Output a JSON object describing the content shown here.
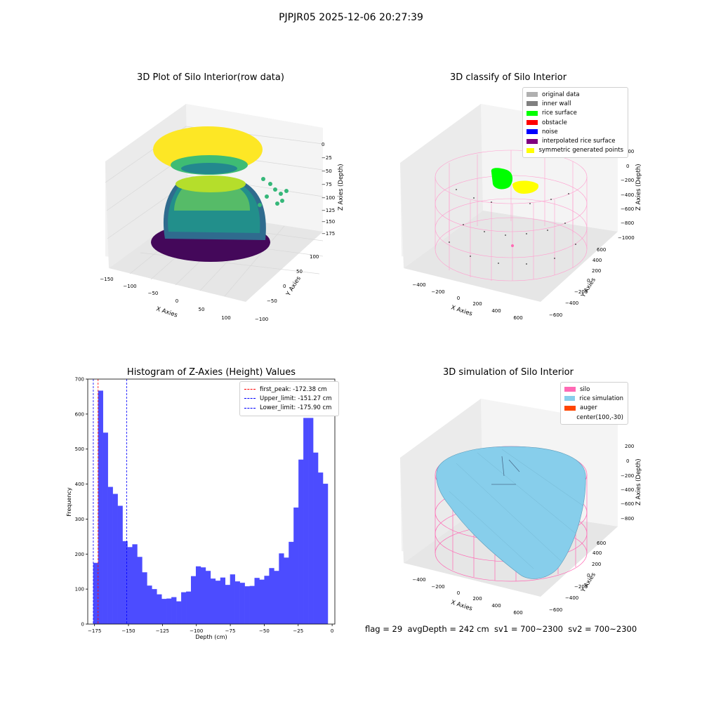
{
  "suptitle": "PJPJR05 2025-12-06 20:27:39",
  "colors": {
    "histogram_bar": "#4c4cff",
    "silo_pink": "#ff69b4",
    "rice_blue": "#87ceeb",
    "viridis_yellow": "#fde725"
  },
  "plot_raw": {
    "title": "3D Plot of Silo Interior(row data)",
    "xlabel": "X Axies",
    "ylabel": "Y Axies",
    "zlabel": "Z Axies (Depth)",
    "xticks": [
      "−150",
      "−100",
      "−50",
      "0",
      "50",
      "100"
    ],
    "yticks": [
      "−100",
      "−50",
      "0",
      "50",
      "100"
    ],
    "zticks": [
      "0",
      "−25",
      "−50",
      "−75",
      "−100",
      "−125",
      "−150",
      "−175"
    ]
  },
  "plot_classify": {
    "title": "3D classify of Silo Interior",
    "xlabel": "X Axies",
    "ylabel": "Y Axies",
    "zlabel": "Z Axies (Depth)",
    "xticks": [
      "−400",
      "−200",
      "0",
      "200",
      "400",
      "600"
    ],
    "yticks": [
      "−600",
      "−400",
      "−200",
      "0",
      "200",
      "400",
      "600"
    ],
    "zticks": [
      "200",
      "0",
      "−200",
      "−400",
      "−600",
      "−800",
      "−1000"
    ],
    "legend": [
      {
        "label": "original data",
        "color": "#b0b0b0"
      },
      {
        "label": "inner wall",
        "color": "#808080"
      },
      {
        "label": "rice surface",
        "color": "#00ff00"
      },
      {
        "label": "obstacle",
        "color": "#ff0000"
      },
      {
        "label": "noise",
        "color": "#0000ff"
      },
      {
        "label": "interpolated rice surface",
        "color": "#800080"
      },
      {
        "label": "symmetric generated points",
        "color": "#ffff00"
      }
    ]
  },
  "plot_sim": {
    "title": "3D simulation of Silo Interior",
    "xlabel": "X Axies",
    "ylabel": "Y Axies",
    "zlabel": "Z Axies (Depth)",
    "xticks": [
      "−400",
      "−200",
      "0",
      "200",
      "400",
      "600"
    ],
    "yticks": [
      "−600",
      "−400",
      "−200",
      "0",
      "200",
      "400",
      "600"
    ],
    "zticks": [
      "200",
      "0",
      "−200",
      "−400",
      "−600",
      "−800"
    ],
    "legend": [
      {
        "label": "silo",
        "color": "#ff69b4"
      },
      {
        "label": "rice simulation",
        "color": "#87ceeb"
      },
      {
        "label": "auger",
        "color": "#ff4500"
      },
      {
        "label": "center(100,-30)",
        "color": ""
      }
    ]
  },
  "footer": "flag = 29  avgDepth = 242 cm  sv1 = 700~2300  sv2 = 700~2300",
  "chart_data": {
    "type": "bar",
    "title": "Histogram of Z-Axies (Height) Values",
    "xlabel": "Depth (cm)",
    "ylabel": "Frequency",
    "xlim": [
      -180,
      2
    ],
    "ylim": [
      0,
      700
    ],
    "xticks": [
      -175,
      -150,
      -125,
      -100,
      -75,
      -50,
      -25,
      0
    ],
    "yticks": [
      0,
      100,
      200,
      300,
      400,
      500,
      600,
      700
    ],
    "bin_width": 3.6,
    "bin_start": -176.0,
    "values": [
      175,
      667,
      547,
      392,
      372,
      338,
      237,
      220,
      228,
      192,
      148,
      110,
      100,
      85,
      72,
      73,
      77,
      65,
      91,
      93,
      137,
      165,
      162,
      152,
      130,
      124,
      133,
      112,
      142,
      122,
      118,
      108,
      109,
      132,
      127,
      138,
      160,
      152,
      202,
      190,
      235,
      333,
      470,
      589,
      589,
      490,
      433,
      401
    ],
    "lines": [
      {
        "name": "first_peak: -172.38 cm",
        "x": -172.38,
        "color": "#ff0000"
      },
      {
        "name": "Upper_limit: -151.27 cm",
        "x": -151.27,
        "color": "#0000ff"
      },
      {
        "name": "Lower_limit: -175.90 cm",
        "x": -175.9,
        "color": "#0000ff"
      }
    ],
    "legend_position": "top-right"
  }
}
